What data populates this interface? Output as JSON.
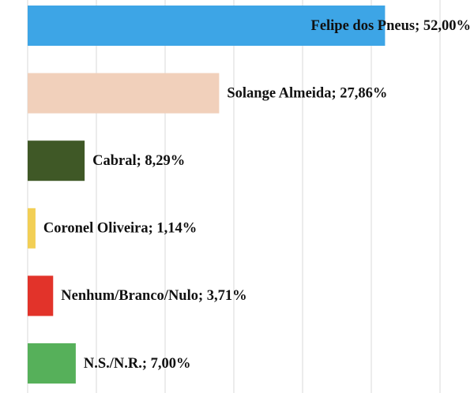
{
  "chart_data": {
    "type": "bar",
    "orientation": "horizontal",
    "categories": [
      "Felipe dos Pneus",
      "Solange Almeida",
      "Cabral",
      "Coronel Oliveira",
      "Nenhum/Branco/Nulo",
      "N.S./N.R."
    ],
    "values": [
      52.0,
      27.86,
      8.29,
      1.14,
      3.71,
      7.0
    ],
    "data_labels": [
      "Felipe dos Pneus; 52,00%",
      "Solange Almeida; 27,86%",
      "Cabral; 8,29%",
      "Coronel Oliveira; 1,14%",
      "Nenhum/Branco/Nulo; 3,71%",
      "N.S./N.R.; 7,00%"
    ],
    "colors": [
      "#3da5e6",
      "#f1d0bb",
      "#3f5826",
      "#f2cf55",
      "#e2332a",
      "#56b05a"
    ],
    "xlim": [
      0,
      60
    ],
    "grid": true,
    "title": "",
    "xlabel": "",
    "ylabel": ""
  }
}
